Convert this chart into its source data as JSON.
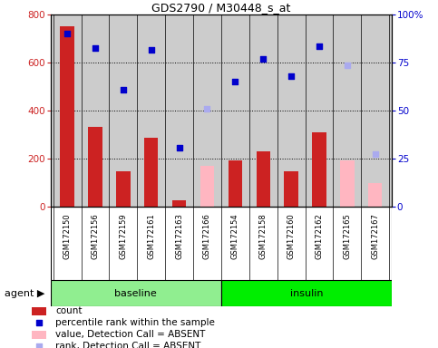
{
  "title": "GDS2790 / M30448_s_at",
  "samples": [
    "GSM172150",
    "GSM172156",
    "GSM172159",
    "GSM172161",
    "GSM172163",
    "GSM172166",
    "GSM172154",
    "GSM172158",
    "GSM172160",
    "GSM172162",
    "GSM172165",
    "GSM172167"
  ],
  "groups": [
    {
      "name": "baseline",
      "color": "#90EE90",
      "count": 6
    },
    {
      "name": "insulin",
      "color": "#00EE00",
      "count": 6
    }
  ],
  "count_values": [
    750,
    335,
    150,
    290,
    30,
    null,
    195,
    230,
    150,
    310,
    null,
    null
  ],
  "count_absent": [
    null,
    null,
    null,
    null,
    null,
    170,
    null,
    null,
    null,
    null,
    195,
    100
  ],
  "percentile_values": [
    720,
    660,
    488,
    652,
    248,
    null,
    520,
    616,
    543,
    668,
    null,
    null
  ],
  "percentile_absent": [
    null,
    null,
    null,
    null,
    null,
    408,
    null,
    null,
    null,
    null,
    588,
    220
  ],
  "left_ylim": [
    0,
    800
  ],
  "right_ylim": [
    0,
    100
  ],
  "left_yticks": [
    0,
    200,
    400,
    600,
    800
  ],
  "right_yticks": [
    0,
    25,
    50,
    75,
    100
  ],
  "right_yticklabels": [
    "0",
    "25",
    "50",
    "75",
    "100%"
  ],
  "bar_color": "#CC2222",
  "bar_absent_color": "#FFB6C1",
  "dot_color": "#0000CC",
  "dot_absent_color": "#AAAAEE",
  "bg_color": "#CCCCCC",
  "legend_items": [
    {
      "label": "count",
      "color": "#CC2222",
      "type": "bar"
    },
    {
      "label": "percentile rank within the sample",
      "color": "#0000CC",
      "type": "dot"
    },
    {
      "label": "value, Detection Call = ABSENT",
      "color": "#FFB6C1",
      "type": "bar"
    },
    {
      "label": "rank, Detection Call = ABSENT",
      "color": "#AAAAEE",
      "type": "dot"
    }
  ],
  "bar_width": 0.5,
  "figsize": [
    4.83,
    3.84
  ],
  "dpi": 100
}
